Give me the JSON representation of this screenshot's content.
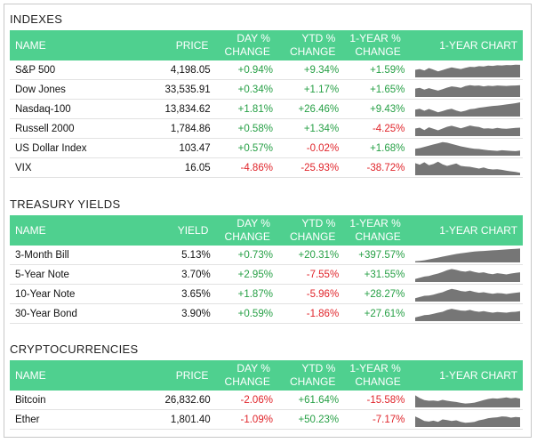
{
  "sections": [
    {
      "title": "INDEXES",
      "headers": [
        "NAME",
        "PRICE",
        "DAY %|CHANGE",
        "YTD %|CHANGE",
        "1-YEAR %|CHANGE",
        "1-YEAR CHART"
      ],
      "rows": [
        {
          "name": "S&P 500",
          "value": "4,198.05",
          "day": "+0.94%",
          "ytd": "+9.34%",
          "year": "+1.59%",
          "spark": [
            0.5,
            0.55,
            0.45,
            0.62,
            0.52,
            0.4,
            0.48,
            0.58,
            0.66,
            0.6,
            0.55,
            0.63,
            0.7,
            0.68,
            0.74,
            0.72,
            0.78,
            0.76,
            0.8,
            0.79,
            0.82,
            0.81,
            0.84,
            0.83
          ]
        },
        {
          "name": "Dow Jones",
          "value": "33,535.91",
          "day": "+0.34%",
          "ytd": "+1.17%",
          "year": "+1.65%",
          "spark": [
            0.55,
            0.6,
            0.48,
            0.58,
            0.5,
            0.42,
            0.52,
            0.62,
            0.7,
            0.66,
            0.6,
            0.72,
            0.78,
            0.74,
            0.76,
            0.7,
            0.74,
            0.72,
            0.76,
            0.74,
            0.73,
            0.75,
            0.76,
            0.78
          ]
        },
        {
          "name": "Nasdaq-100",
          "value": "13,834.62",
          "day": "+1.81%",
          "ytd": "+26.46%",
          "year": "+9.43%",
          "spark": [
            0.45,
            0.52,
            0.38,
            0.5,
            0.4,
            0.28,
            0.36,
            0.46,
            0.52,
            0.4,
            0.32,
            0.38,
            0.48,
            0.52,
            0.58,
            0.62,
            0.66,
            0.7,
            0.72,
            0.76,
            0.8,
            0.84,
            0.88,
            0.94
          ]
        },
        {
          "name": "Russell 2000",
          "value": "1,784.86",
          "day": "+0.58%",
          "ytd": "+1.34%",
          "year": "-4.25%",
          "spark": [
            0.5,
            0.56,
            0.4,
            0.58,
            0.48,
            0.38,
            0.5,
            0.62,
            0.68,
            0.6,
            0.52,
            0.6,
            0.7,
            0.64,
            0.6,
            0.5,
            0.52,
            0.48,
            0.54,
            0.5,
            0.48,
            0.52,
            0.54,
            0.56
          ]
        },
        {
          "name": "US Dollar Index",
          "value": "103.47",
          "day": "+0.57%",
          "ytd": "-0.02%",
          "year": "+1.68%",
          "spark": [
            0.45,
            0.5,
            0.58,
            0.66,
            0.74,
            0.82,
            0.9,
            0.86,
            0.78,
            0.7,
            0.62,
            0.56,
            0.5,
            0.46,
            0.44,
            0.4,
            0.36,
            0.34,
            0.32,
            0.36,
            0.34,
            0.32,
            0.3,
            0.34
          ]
        },
        {
          "name": "VIX",
          "value": "16.05",
          "day": "-4.86%",
          "ytd": "-25.93%",
          "year": "-38.72%",
          "spark": [
            0.8,
            0.7,
            0.86,
            0.66,
            0.74,
            0.9,
            0.72,
            0.62,
            0.7,
            0.78,
            0.62,
            0.58,
            0.56,
            0.5,
            0.44,
            0.52,
            0.42,
            0.38,
            0.4,
            0.36,
            0.3,
            0.26,
            0.22,
            0.16
          ]
        }
      ]
    },
    {
      "title": "TREASURY YIELDS",
      "headers": [
        "NAME",
        "YIELD",
        "DAY %|CHANGE",
        "YTD %|CHANGE",
        "1-YEAR %|CHANGE",
        "1-YEAR CHART"
      ],
      "rows": [
        {
          "name": "3-Month Bill",
          "value": "5.13%",
          "day": "+0.73%",
          "ytd": "+20.31%",
          "year": "+397.57%",
          "spark": [
            0.08,
            0.1,
            0.14,
            0.2,
            0.26,
            0.32,
            0.38,
            0.44,
            0.5,
            0.56,
            0.6,
            0.64,
            0.68,
            0.72,
            0.74,
            0.76,
            0.78,
            0.8,
            0.82,
            0.84,
            0.86,
            0.88,
            0.9,
            0.92
          ]
        },
        {
          "name": "5-Year Note",
          "value": "3.70%",
          "day": "+2.95%",
          "ytd": "-7.55%",
          "year": "+31.55%",
          "spark": [
            0.2,
            0.28,
            0.36,
            0.4,
            0.48,
            0.56,
            0.66,
            0.78,
            0.86,
            0.8,
            0.72,
            0.68,
            0.74,
            0.66,
            0.6,
            0.64,
            0.56,
            0.52,
            0.58,
            0.54,
            0.5,
            0.56,
            0.6,
            0.64
          ]
        },
        {
          "name": "10-Year Note",
          "value": "3.65%",
          "day": "+1.87%",
          "ytd": "-5.96%",
          "year": "+28.27%",
          "spark": [
            0.22,
            0.3,
            0.38,
            0.4,
            0.46,
            0.54,
            0.62,
            0.74,
            0.84,
            0.78,
            0.7,
            0.66,
            0.72,
            0.64,
            0.58,
            0.62,
            0.56,
            0.52,
            0.56,
            0.54,
            0.5,
            0.54,
            0.58,
            0.62
          ]
        },
        {
          "name": "30-Year Bond",
          "value": "3.90%",
          "day": "+0.59%",
          "ytd": "-1.86%",
          "year": "+27.61%",
          "spark": [
            0.24,
            0.32,
            0.4,
            0.42,
            0.48,
            0.56,
            0.62,
            0.74,
            0.82,
            0.76,
            0.7,
            0.68,
            0.74,
            0.66,
            0.62,
            0.66,
            0.6,
            0.56,
            0.6,
            0.58,
            0.56,
            0.6,
            0.62,
            0.66
          ]
        }
      ]
    },
    {
      "title": "CRYPTOCURRENCIES",
      "headers": [
        "NAME",
        "PRICE",
        "DAY %|CHANGE",
        "YTD %|CHANGE",
        "1-YEAR %|CHANGE",
        "1-YEAR CHART"
      ],
      "rows": [
        {
          "name": "Bitcoin",
          "value": "26,832.60",
          "day": "-2.06%",
          "ytd": "+61.64%",
          "year": "-15.58%",
          "spark": [
            0.8,
            0.62,
            0.48,
            0.44,
            0.46,
            0.42,
            0.5,
            0.44,
            0.4,
            0.36,
            0.3,
            0.26,
            0.28,
            0.32,
            0.4,
            0.48,
            0.56,
            0.6,
            0.58,
            0.62,
            0.66,
            0.6,
            0.64,
            0.58
          ]
        },
        {
          "name": "Ether",
          "value": "1,801.40",
          "day": "-1.09%",
          "ytd": "+50.23%",
          "year": "-7.17%",
          "spark": [
            0.7,
            0.56,
            0.4,
            0.36,
            0.42,
            0.34,
            0.5,
            0.46,
            0.4,
            0.44,
            0.34,
            0.28,
            0.3,
            0.34,
            0.44,
            0.5,
            0.58,
            0.62,
            0.64,
            0.7,
            0.68,
            0.62,
            0.66,
            0.64
          ]
        }
      ]
    }
  ],
  "colors": {
    "header_bg": "#4fd08f",
    "positive": "#27a046",
    "negative": "#e0252b",
    "spark_fill": "#767676"
  }
}
